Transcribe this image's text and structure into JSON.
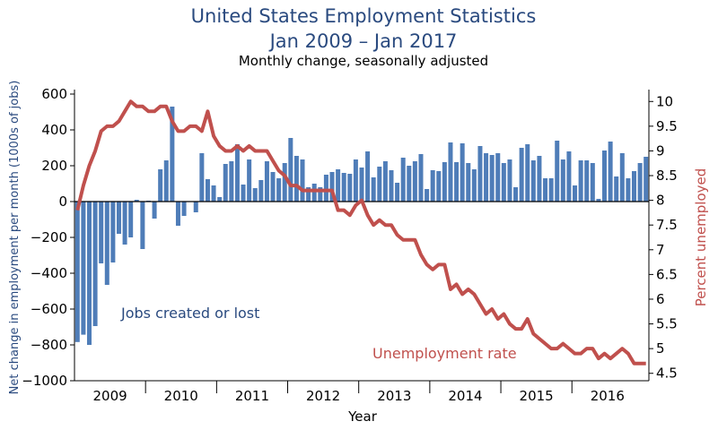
{
  "chart_data": {
    "type": "bar+line",
    "title": "United States Employment Statistics",
    "title_line2": "Jan 2009 – Jan 2017",
    "subtitle": "Monthly change, seasonally adjusted",
    "xlabel": "Year",
    "ylabel_left": "Net change in employment per month (1000s of jobs)",
    "ylabel_right": "Percent unemployed",
    "x_ticks": [
      "2009",
      "2010",
      "2011",
      "2012",
      "2013",
      "2014",
      "2015",
      "2016"
    ],
    "y_left_ticks": [
      "600",
      "400",
      "200",
      "0",
      "−200",
      "−400",
      "−600",
      "−800",
      "−1000"
    ],
    "y_right_ticks": [
      "10",
      "9.5",
      "9",
      "8.5",
      "8",
      "7.5",
      "7",
      "6.5",
      "6",
      "5.5",
      "5",
      "4.5"
    ],
    "ylim_left": [
      -1000,
      600
    ],
    "ylim_right": [
      4.35,
      10.15
    ],
    "grid": false,
    "colors": {
      "bars": "#4f7db8",
      "line": "#c0504d",
      "title": "#2a4a7f"
    },
    "annotations": {
      "bars": "Jobs created or lost",
      "line": "Unemployment rate"
    },
    "series": [
      {
        "type": "bar",
        "axis": "left",
        "values": [
          -784,
          -743,
          -800,
          -695,
          -345,
          -465,
          -340,
          -180,
          -240,
          -200,
          10,
          -265,
          5,
          -95,
          180,
          230,
          530,
          -135,
          -80,
          0,
          -60,
          270,
          125,
          90,
          25,
          210,
          225,
          320,
          95,
          235,
          75,
          120,
          225,
          165,
          130,
          215,
          355,
          255,
          235,
          80,
          100,
          80,
          150,
          165,
          180,
          160,
          155,
          235,
          190,
          280,
          135,
          195,
          225,
          175,
          105,
          245,
          200,
          225,
          265,
          70,
          175,
          170,
          220,
          330,
          220,
          325,
          215,
          180,
          310,
          270,
          260,
          270,
          215,
          235,
          80,
          300,
          320,
          230,
          255,
          130,
          130,
          340,
          235,
          280,
          90,
          230,
          230,
          215,
          15,
          285,
          335,
          140,
          270,
          130,
          170,
          215,
          250
        ]
      },
      {
        "type": "line",
        "axis": "right",
        "name": "Unemployment rate",
        "values": [
          7.8,
          8.3,
          8.7,
          9.0,
          9.4,
          9.5,
          9.5,
          9.6,
          9.8,
          10.0,
          9.9,
          9.9,
          9.8,
          9.8,
          9.9,
          9.9,
          9.6,
          9.4,
          9.4,
          9.5,
          9.5,
          9.4,
          9.8,
          9.3,
          9.1,
          9.0,
          9.0,
          9.1,
          9.0,
          9.1,
          9.0,
          9.0,
          9.0,
          8.8,
          8.6,
          8.5,
          8.3,
          8.3,
          8.2,
          8.2,
          8.2,
          8.2,
          8.2,
          8.2,
          7.8,
          7.8,
          7.7,
          7.9,
          8.0,
          7.7,
          7.5,
          7.6,
          7.5,
          7.5,
          7.3,
          7.2,
          7.2,
          7.2,
          6.9,
          6.7,
          6.6,
          6.7,
          6.7,
          6.2,
          6.3,
          6.1,
          6.2,
          6.1,
          5.9,
          5.7,
          5.8,
          5.6,
          5.7,
          5.5,
          5.4,
          5.4,
          5.6,
          5.3,
          5.2,
          5.1,
          5.0,
          5.0,
          5.1,
          5.0,
          4.9,
          4.9,
          5.0,
          5.0,
          4.8,
          4.9,
          4.8,
          4.9,
          5.0,
          4.9,
          4.7,
          4.7,
          4.7
        ]
      }
    ]
  }
}
